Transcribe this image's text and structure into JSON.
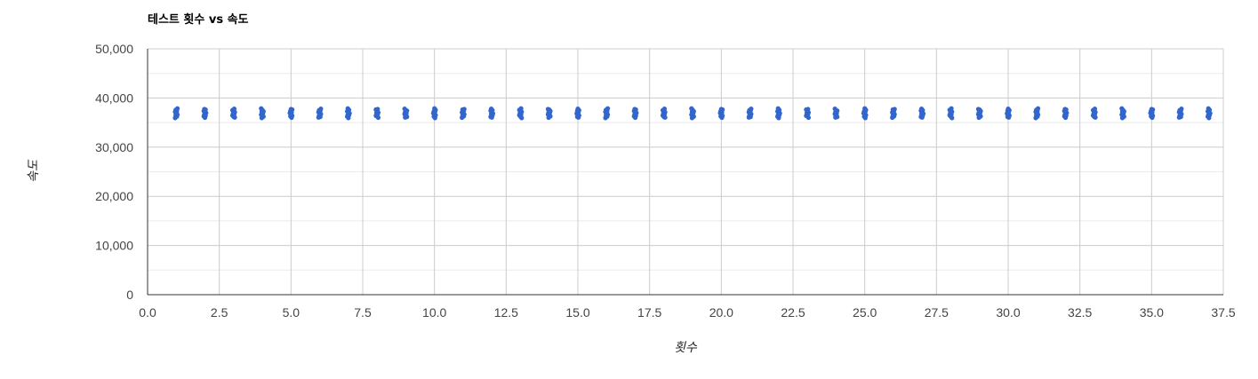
{
  "chart_data": {
    "type": "scatter",
    "title": "테스트 횟수 vs 속도",
    "xlabel": "횟수",
    "ylabel": "속도",
    "xlim": [
      0,
      37.5
    ],
    "ylim": [
      0,
      50000
    ],
    "x_ticks": [
      "0.0",
      "2.5",
      "5.0",
      "7.5",
      "10.0",
      "12.5",
      "15.0",
      "17.5",
      "20.0",
      "22.5",
      "25.0",
      "27.5",
      "30.0",
      "32.5",
      "35.0",
      "37.5"
    ],
    "y_ticks": [
      "0",
      "10,000",
      "20,000",
      "30,000",
      "40,000",
      "50,000"
    ],
    "grid": true,
    "legend": "none",
    "series": [
      {
        "color": "#3366cc",
        "points_per_run": {
          "x_values": [
            1,
            2,
            3,
            4,
            5,
            6,
            7,
            8,
            9,
            10,
            11,
            12,
            13,
            14,
            15,
            16,
            17,
            18,
            19,
            20,
            21,
            22,
            23,
            24,
            25,
            26,
            27,
            28,
            29,
            30,
            31,
            32,
            33,
            34,
            35,
            36,
            37
          ],
          "y_range": [
            36000,
            37800
          ]
        }
      }
    ]
  }
}
